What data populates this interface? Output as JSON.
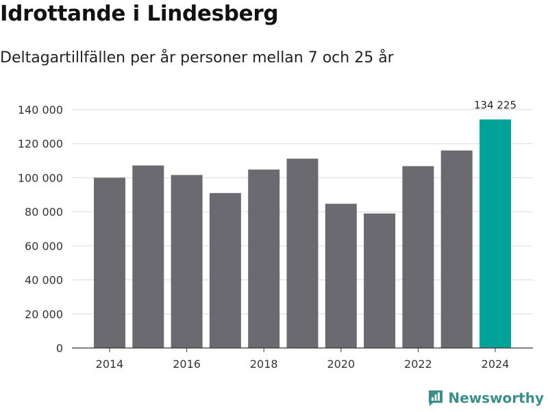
{
  "header": {
    "title": "Idrottande i Lindesberg",
    "subtitle": "Deltagartillfällen per år personer mellan 7 och 25 år"
  },
  "brand": {
    "name": "Newsworthy",
    "logo_icon": "newsworthy-logo-icon"
  },
  "colors": {
    "bar": "#6b6a70",
    "highlight": "#00a398",
    "grid": "#d9d9d9",
    "text": "#333333"
  },
  "chart_data": {
    "type": "bar",
    "title": "Idrottande i Lindesberg",
    "subtitle": "Deltagartillfällen per år personer mellan 7 och 25 år",
    "xlabel": "",
    "ylabel": "",
    "categories": [
      "2014",
      "2015",
      "2016",
      "2017",
      "2018",
      "2019",
      "2020",
      "2021",
      "2022",
      "2023",
      "2024"
    ],
    "values": [
      100000,
      107200,
      101600,
      91000,
      104800,
      111200,
      84700,
      79000,
      106800,
      116000,
      134225
    ],
    "highlight_index": 10,
    "data_labels": [
      {
        "index": 10,
        "text": "134 225"
      }
    ],
    "x_tick_labels": [
      "2014",
      "2016",
      "2018",
      "2020",
      "2022",
      "2024"
    ],
    "y_ticks": [
      0,
      20000,
      40000,
      60000,
      80000,
      100000,
      120000,
      140000
    ],
    "y_tick_labels": [
      "0",
      "20 000",
      "40 000",
      "60 000",
      "80 000",
      "100 000",
      "120 000",
      "140 000"
    ],
    "ylim": [
      0,
      140000
    ],
    "grid": true
  }
}
